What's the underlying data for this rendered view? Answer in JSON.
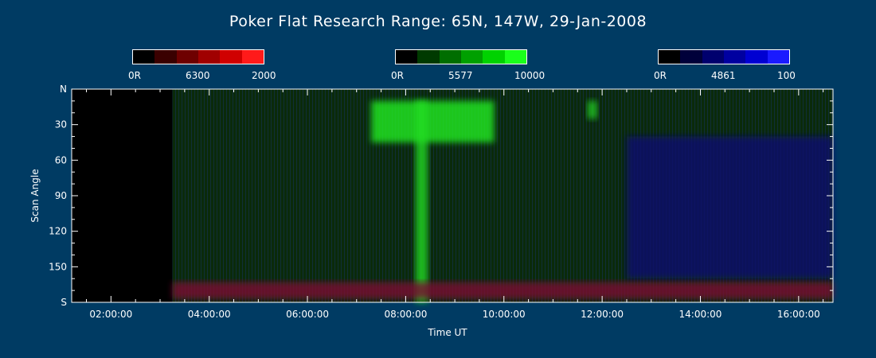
{
  "title": "Poker Flat Research Range: 65N, 147W, 29-Jan-2008",
  "colorbars": [
    {
      "channel": "6300",
      "min_label": "0R",
      "mid_label": "6300",
      "max_label": "2000",
      "colors": [
        "#000000",
        "#3a0000",
        "#6e0000",
        "#a00000",
        "#d00000",
        "#ff1a1a"
      ]
    },
    {
      "channel": "5577",
      "min_label": "0R",
      "mid_label": "5577",
      "max_label": "10000",
      "colors": [
        "#000000",
        "#003a00",
        "#006e00",
        "#00a000",
        "#00d200",
        "#1aff1a"
      ]
    },
    {
      "channel": "4861",
      "min_label": "0R",
      "mid_label": "4861",
      "max_label": "100",
      "colors": [
        "#000000",
        "#00003a",
        "#00006e",
        "#0000a0",
        "#0000d2",
        "#1a1aff"
      ]
    }
  ],
  "chart_data": {
    "type": "heatmap",
    "xlabel": "Time UT",
    "ylabel": "Scan Angle",
    "xlim": [
      1.2,
      16.7
    ],
    "ylim": [
      0,
      180
    ],
    "x_ticks": [
      {
        "value": 2,
        "label": "02:00:00"
      },
      {
        "value": 4,
        "label": "04:00:00"
      },
      {
        "value": 6,
        "label": "06:00:00"
      },
      {
        "value": 8,
        "label": "08:00:00"
      },
      {
        "value": 10,
        "label": "10:00:00"
      },
      {
        "value": 12,
        "label": "12:00:00"
      },
      {
        "value": 14,
        "label": "14:00:00"
      },
      {
        "value": 16,
        "label": "16:00:00"
      }
    ],
    "y_ticks": [
      {
        "value": 0,
        "label": "N"
      },
      {
        "value": 30,
        "label": "30"
      },
      {
        "value": 60,
        "label": "60"
      },
      {
        "value": 90,
        "label": "90"
      },
      {
        "value": 120,
        "label": "120"
      },
      {
        "value": 150,
        "label": "150"
      },
      {
        "value": 180,
        "label": "S"
      }
    ],
    "data_start_time": 3.25,
    "no_data_color": "#000000",
    "background_color": "#0a2a0a",
    "features": [
      {
        "channel": "5577",
        "time_start": 7.3,
        "time_end": 9.8,
        "angle_start": 10,
        "angle_end": 45,
        "color": "#22ee22"
      },
      {
        "channel": "5577",
        "time_start": 8.2,
        "time_end": 8.45,
        "angle_start": 10,
        "angle_end": 180,
        "color": "#22dd22"
      },
      {
        "channel": "5577",
        "time_start": 11.7,
        "time_end": 11.9,
        "angle_start": 10,
        "angle_end": 25,
        "color": "#22cc22"
      },
      {
        "channel": "4861",
        "time_start": 12.5,
        "time_end": 16.7,
        "angle_start": 40,
        "angle_end": 160,
        "color": "#0a0a6e"
      },
      {
        "channel": "6300",
        "time_start": 3.25,
        "time_end": 16.7,
        "angle_start": 163,
        "angle_end": 177,
        "color": "#7a1030"
      }
    ]
  }
}
